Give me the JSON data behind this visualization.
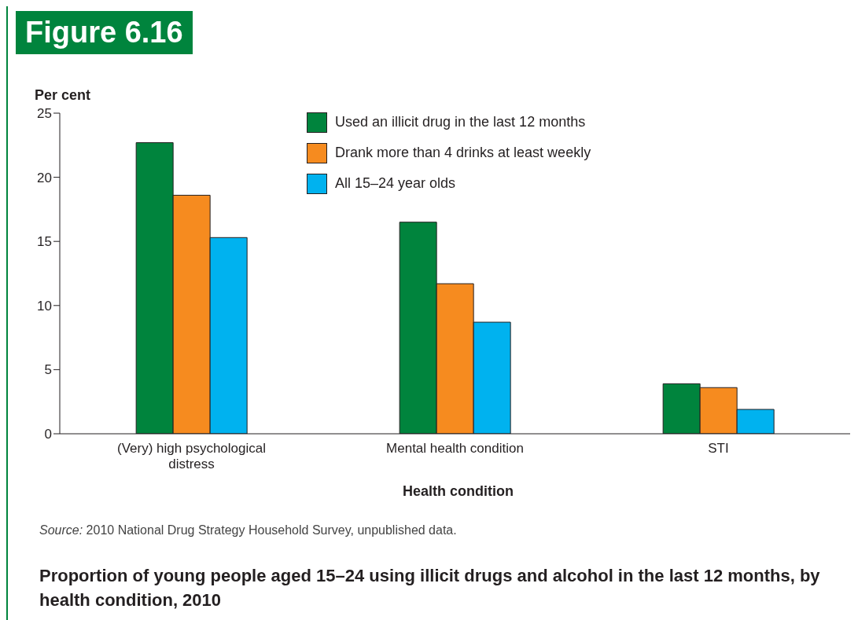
{
  "chart_data": {
    "type": "bar",
    "title": "Figure 6.16",
    "subtitle": "Proportion of young people aged 15–24 using illicit drugs and alcohol in the last 12 months, by health condition, 2010",
    "xlabel": "Health condition",
    "ylabel": "Per cent",
    "categories": [
      "(Very) high psychological distress",
      "Mental health condition",
      "STI"
    ],
    "series": [
      {
        "name": "Used an illicit drug in the last 12 months",
        "color": "#00843d",
        "values": [
          22.7,
          16.5,
          3.9
        ]
      },
      {
        "name": "Drank more than 4 drinks at least weekly",
        "color": "#f68b1f",
        "values": [
          18.6,
          11.7,
          3.6
        ]
      },
      {
        "name": "All 15–24 year olds",
        "color": "#00b2ef",
        "values": [
          15.3,
          8.7,
          1.9
        ]
      }
    ],
    "ylim": [
      0,
      25
    ],
    "yticks": [
      0,
      5,
      10,
      15,
      20,
      25
    ],
    "grid": false,
    "legend": "top",
    "annotations": [
      "Source: 2010 National Drug Strategy Household Survey, unpublished data."
    ]
  }
}
